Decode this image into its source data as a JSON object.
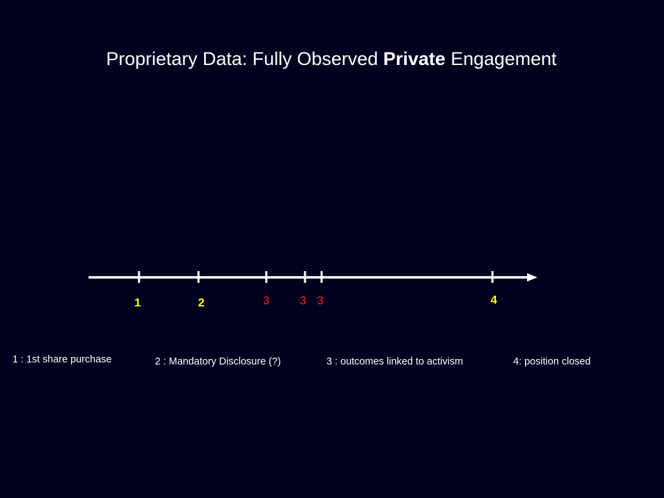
{
  "title": {
    "before": "Proprietary Data: Fully Observed",
    "bold": "Private",
    "after": "Engagement"
  },
  "markers": [
    "1",
    "2",
    "3",
    "3",
    "3",
    "4"
  ],
  "legend": [
    "1 : 1st share purchase",
    "2 : Mandatory Disclosure (?)",
    "3 : outcomes linked to activism",
    "4: position closed"
  ]
}
